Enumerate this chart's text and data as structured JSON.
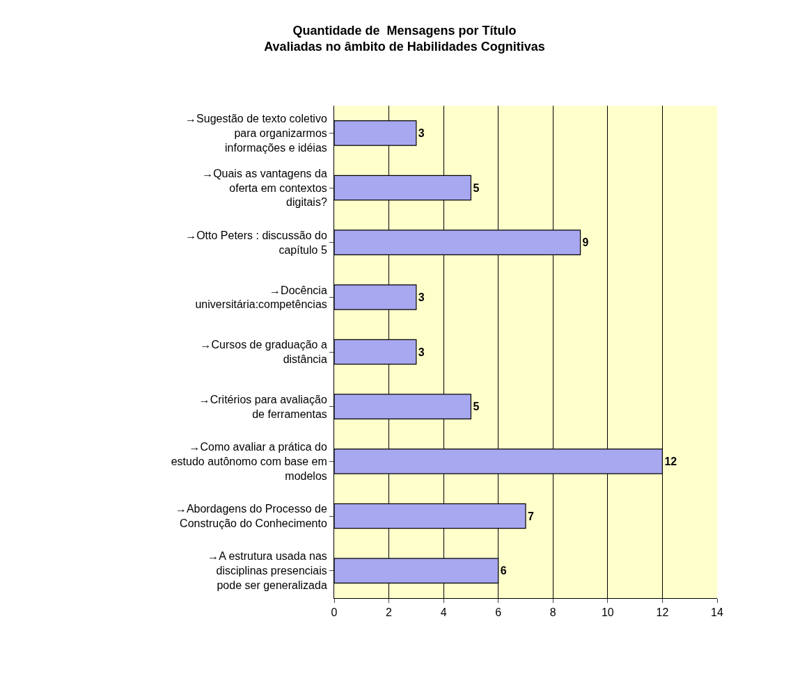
{
  "chart_data": {
    "type": "bar",
    "orientation": "horizontal",
    "title": "Quantidade de  Mensagens por Título\nAvaliadas no âmbito de Habilidades Cognitivas",
    "categories": [
      "→Sugestão de texto coletivo para organizarmos informações e idéias",
      "→Quais as vantagens da oferta em contextos digitais?",
      "→Otto Peters : discussão do capítulo 5",
      "→Docência universitária:competências",
      "→Cursos de graduação a distância",
      "→Critérios para avaliação de ferramentas",
      "→Como avaliar a prática do estudo autônomo com base em modelos",
      "→Abordagens do Processo de Construção do Conhecimento",
      "→A estrutura usada nas disciplinas presenciais pode ser generalizada"
    ],
    "values": [
      3,
      5,
      9,
      3,
      3,
      5,
      12,
      7,
      6
    ],
    "color": "#a8a8f0",
    "xlim": [
      0,
      14
    ],
    "xticks": [
      0,
      2,
      4,
      6,
      8,
      10,
      12,
      14
    ],
    "grid": "x",
    "data_labels": true
  }
}
